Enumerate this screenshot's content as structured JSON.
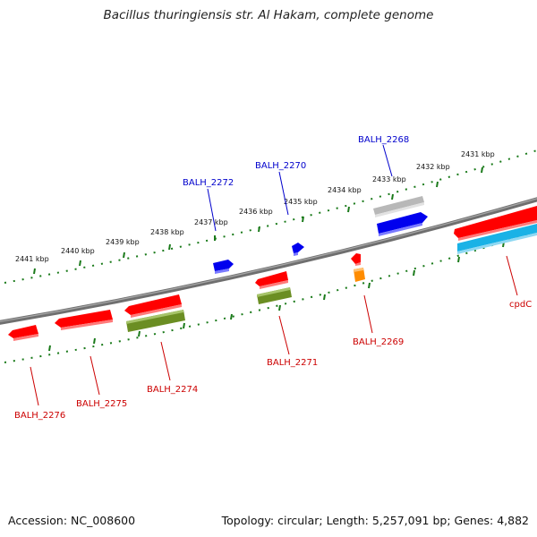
{
  "title": "Bacillus thuringiensis str. Al Hakam, complete genome",
  "footer": {
    "accession": "Accession: NC_008600",
    "summary": "Topology: circular; Length: 5,257,091 bp; Genes: 4,882"
  },
  "ticks": [
    "2441 kbp",
    "2440 kbp",
    "2439 kbp",
    "2438 kbp",
    "2437 kbp",
    "2436 kbp",
    "2435 kbp",
    "2434 kbp",
    "2433 kbp",
    "2432 kbp",
    "2431 kbp"
  ],
  "gene_labels": {
    "BALH_2268": "BALH_2268",
    "BALH_2269": "BALH_2269",
    "BALH_2270": "BALH_2270",
    "BALH_2271": "BALH_2271",
    "BALH_2272": "BALH_2272",
    "BALH_2274": "BALH_2274",
    "BALH_2275": "BALH_2275",
    "BALH_2276": "BALH_2276",
    "cpdC": "cpdC"
  },
  "colors": {
    "cds_red": "#ff0000",
    "cds_blue": "#0000ee",
    "rna_olive": "#6b8e23",
    "cds_cyan": "#1ab2e6",
    "gene_gray": "#b0b0b0",
    "orange": "#ff8c00",
    "tick_green": "#1a7a1a",
    "backbone": "#777777"
  }
}
